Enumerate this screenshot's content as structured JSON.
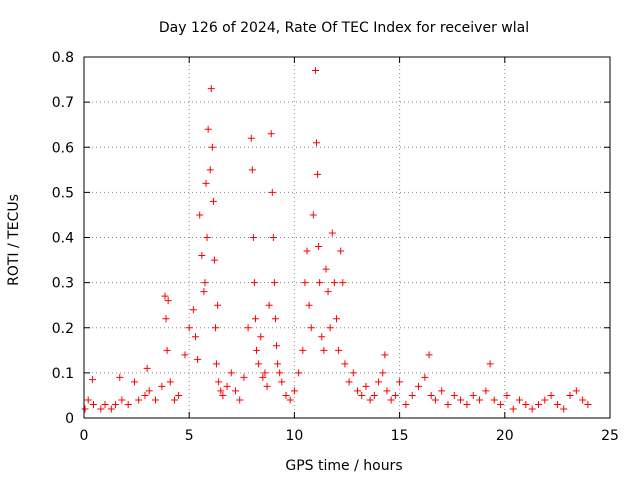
{
  "chart_data": {
    "type": "scatter",
    "title": "Day 126 of 2024, Rate Of TEC Index for receiver wlal",
    "xlabel": "GPS time / hours",
    "ylabel": "ROTI / TECUs",
    "xlim": [
      0,
      25
    ],
    "ylim": [
      0,
      0.8
    ],
    "xticks": [
      0,
      5,
      10,
      15,
      20,
      25
    ],
    "yticks": [
      0,
      0.1,
      0.2,
      0.3,
      0.4,
      0.5,
      0.6,
      0.7,
      0.8
    ],
    "grid": true,
    "legend": "none",
    "marker": "+",
    "color": "#ff0000",
    "series": [
      {
        "x": [
          0.05,
          0.2,
          0.4,
          0.45,
          0.8,
          1.0,
          1.3,
          1.5,
          1.7,
          1.8,
          2.1,
          2.4,
          2.6,
          2.9,
          3.0,
          3.1,
          3.4,
          3.7,
          3.85,
          3.9,
          3.95,
          4.0,
          4.1,
          4.3,
          4.5,
          4.8,
          5.0,
          5.2,
          5.3,
          5.4,
          5.5,
          5.6,
          5.7,
          5.75,
          5.8,
          5.85,
          5.9,
          6.0,
          6.05,
          6.1,
          6.15,
          6.2,
          6.25,
          6.3,
          6.35,
          6.4,
          6.5,
          6.6,
          6.8,
          7.0,
          7.2,
          7.4,
          7.6,
          7.8,
          7.95,
          8.0,
          8.05,
          8.1,
          8.15,
          8.2,
          8.3,
          8.4,
          8.5,
          8.6,
          8.7,
          8.8,
          8.9,
          8.95,
          9.0,
          9.05,
          9.1,
          9.15,
          9.2,
          9.3,
          9.4,
          9.6,
          9.8,
          10.0,
          10.2,
          10.4,
          10.5,
          10.6,
          10.7,
          10.8,
          10.9,
          11.0,
          11.05,
          11.1,
          11.15,
          11.2,
          11.3,
          11.4,
          11.5,
          11.6,
          11.7,
          11.8,
          11.9,
          12.0,
          12.1,
          12.2,
          12.3,
          12.4,
          12.6,
          12.8,
          13.0,
          13.2,
          13.4,
          13.6,
          13.8,
          14.0,
          14.2,
          14.3,
          14.4,
          14.6,
          14.8,
          15.0,
          15.3,
          15.6,
          15.9,
          16.2,
          16.4,
          16.5,
          16.7,
          17.0,
          17.3,
          17.6,
          17.9,
          18.2,
          18.5,
          18.8,
          19.1,
          19.3,
          19.5,
          19.8,
          20.1,
          20.4,
          20.7,
          21.0,
          21.3,
          21.6,
          21.9,
          22.2,
          22.5,
          22.8,
          23.1,
          23.4,
          23.7,
          23.95
        ],
        "y": [
          0.02,
          0.04,
          0.085,
          0.03,
          0.02,
          0.03,
          0.02,
          0.03,
          0.09,
          0.04,
          0.03,
          0.08,
          0.04,
          0.05,
          0.11,
          0.06,
          0.04,
          0.07,
          0.27,
          0.22,
          0.15,
          0.26,
          0.08,
          0.04,
          0.05,
          0.14,
          0.2,
          0.24,
          0.18,
          0.13,
          0.45,
          0.36,
          0.28,
          0.3,
          0.52,
          0.4,
          0.64,
          0.55,
          0.73,
          0.6,
          0.48,
          0.35,
          0.2,
          0.12,
          0.25,
          0.08,
          0.06,
          0.05,
          0.07,
          0.1,
          0.06,
          0.04,
          0.09,
          0.2,
          0.62,
          0.55,
          0.4,
          0.3,
          0.22,
          0.15,
          0.12,
          0.18,
          0.09,
          0.1,
          0.07,
          0.25,
          0.63,
          0.5,
          0.4,
          0.3,
          0.22,
          0.16,
          0.12,
          0.1,
          0.08,
          0.05,
          0.04,
          0.06,
          0.1,
          0.15,
          0.3,
          0.37,
          0.25,
          0.2,
          0.45,
          0.77,
          0.61,
          0.54,
          0.38,
          0.3,
          0.18,
          0.15,
          0.33,
          0.28,
          0.2,
          0.41,
          0.3,
          0.22,
          0.15,
          0.37,
          0.3,
          0.12,
          0.08,
          0.1,
          0.06,
          0.05,
          0.07,
          0.04,
          0.05,
          0.08,
          0.1,
          0.14,
          0.06,
          0.04,
          0.05,
          0.08,
          0.03,
          0.05,
          0.07,
          0.09,
          0.14,
          0.05,
          0.04,
          0.06,
          0.03,
          0.05,
          0.04,
          0.03,
          0.05,
          0.04,
          0.06,
          0.12,
          0.04,
          0.03,
          0.05,
          0.02,
          0.04,
          0.03,
          0.02,
          0.03,
          0.04,
          0.05,
          0.03,
          0.02,
          0.05,
          0.06,
          0.04,
          0.03
        ]
      }
    ]
  }
}
